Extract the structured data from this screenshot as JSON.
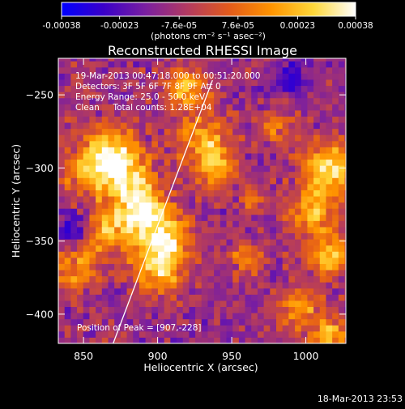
{
  "chart_data": {
    "type": "heatmap",
    "title": "Reconstructed RHESSI Image",
    "xlabel": "Heliocentric X (arcsec)",
    "ylabel": "Heliocentric Y (arcsec)",
    "xlim": [
      833,
      1027
    ],
    "ylim": [
      -420,
      -225
    ],
    "x_ticks": [
      850,
      900,
      950,
      1000
    ],
    "y_ticks": [
      -250,
      -300,
      -350,
      -400
    ],
    "colorbar": {
      "ticks": [
        "-0.00038",
        "-0.00023",
        "-7.6e-05",
        "7.6e-05",
        "0.00023",
        "0.00038"
      ],
      "tick_values": [
        -0.00038,
        -0.00023,
        -7.6e-05,
        7.6e-05,
        0.00023,
        0.00038
      ],
      "units": "(photons cm⁻² s⁻¹ asec⁻²)",
      "colormap": [
        "#0000ff",
        "#3a00c8",
        "#7a1fa0",
        "#b33a60",
        "#e35b1a",
        "#ff9400",
        "#ffd83a",
        "#ffffff"
      ]
    },
    "annotations": [
      "19-Mar-2013 00:47:18.000 to 00:51:20.000",
      "Detectors: 3F 5F 6F 7F 8F 9F Att 0",
      "Energy Range: 25.0 - 50.0 keV",
      "Clean     Total counts: 1.28E+04"
    ],
    "peak_label": "Position of Peak = [907,-228]",
    "peak_position": [
      907,
      -228
    ],
    "limb_line": [
      [
        870,
        -420
      ],
      [
        937,
        -240
      ]
    ],
    "timestamp": "18-Mar-2013 23:53",
    "pattern_notes": "Bright (yellow/white) emission concentrated along an arc from upper-left through center-left, and a bright patch along the right edge around X=1000-1020, Y=-300 to -380; background is mottled purple/blue noise."
  }
}
